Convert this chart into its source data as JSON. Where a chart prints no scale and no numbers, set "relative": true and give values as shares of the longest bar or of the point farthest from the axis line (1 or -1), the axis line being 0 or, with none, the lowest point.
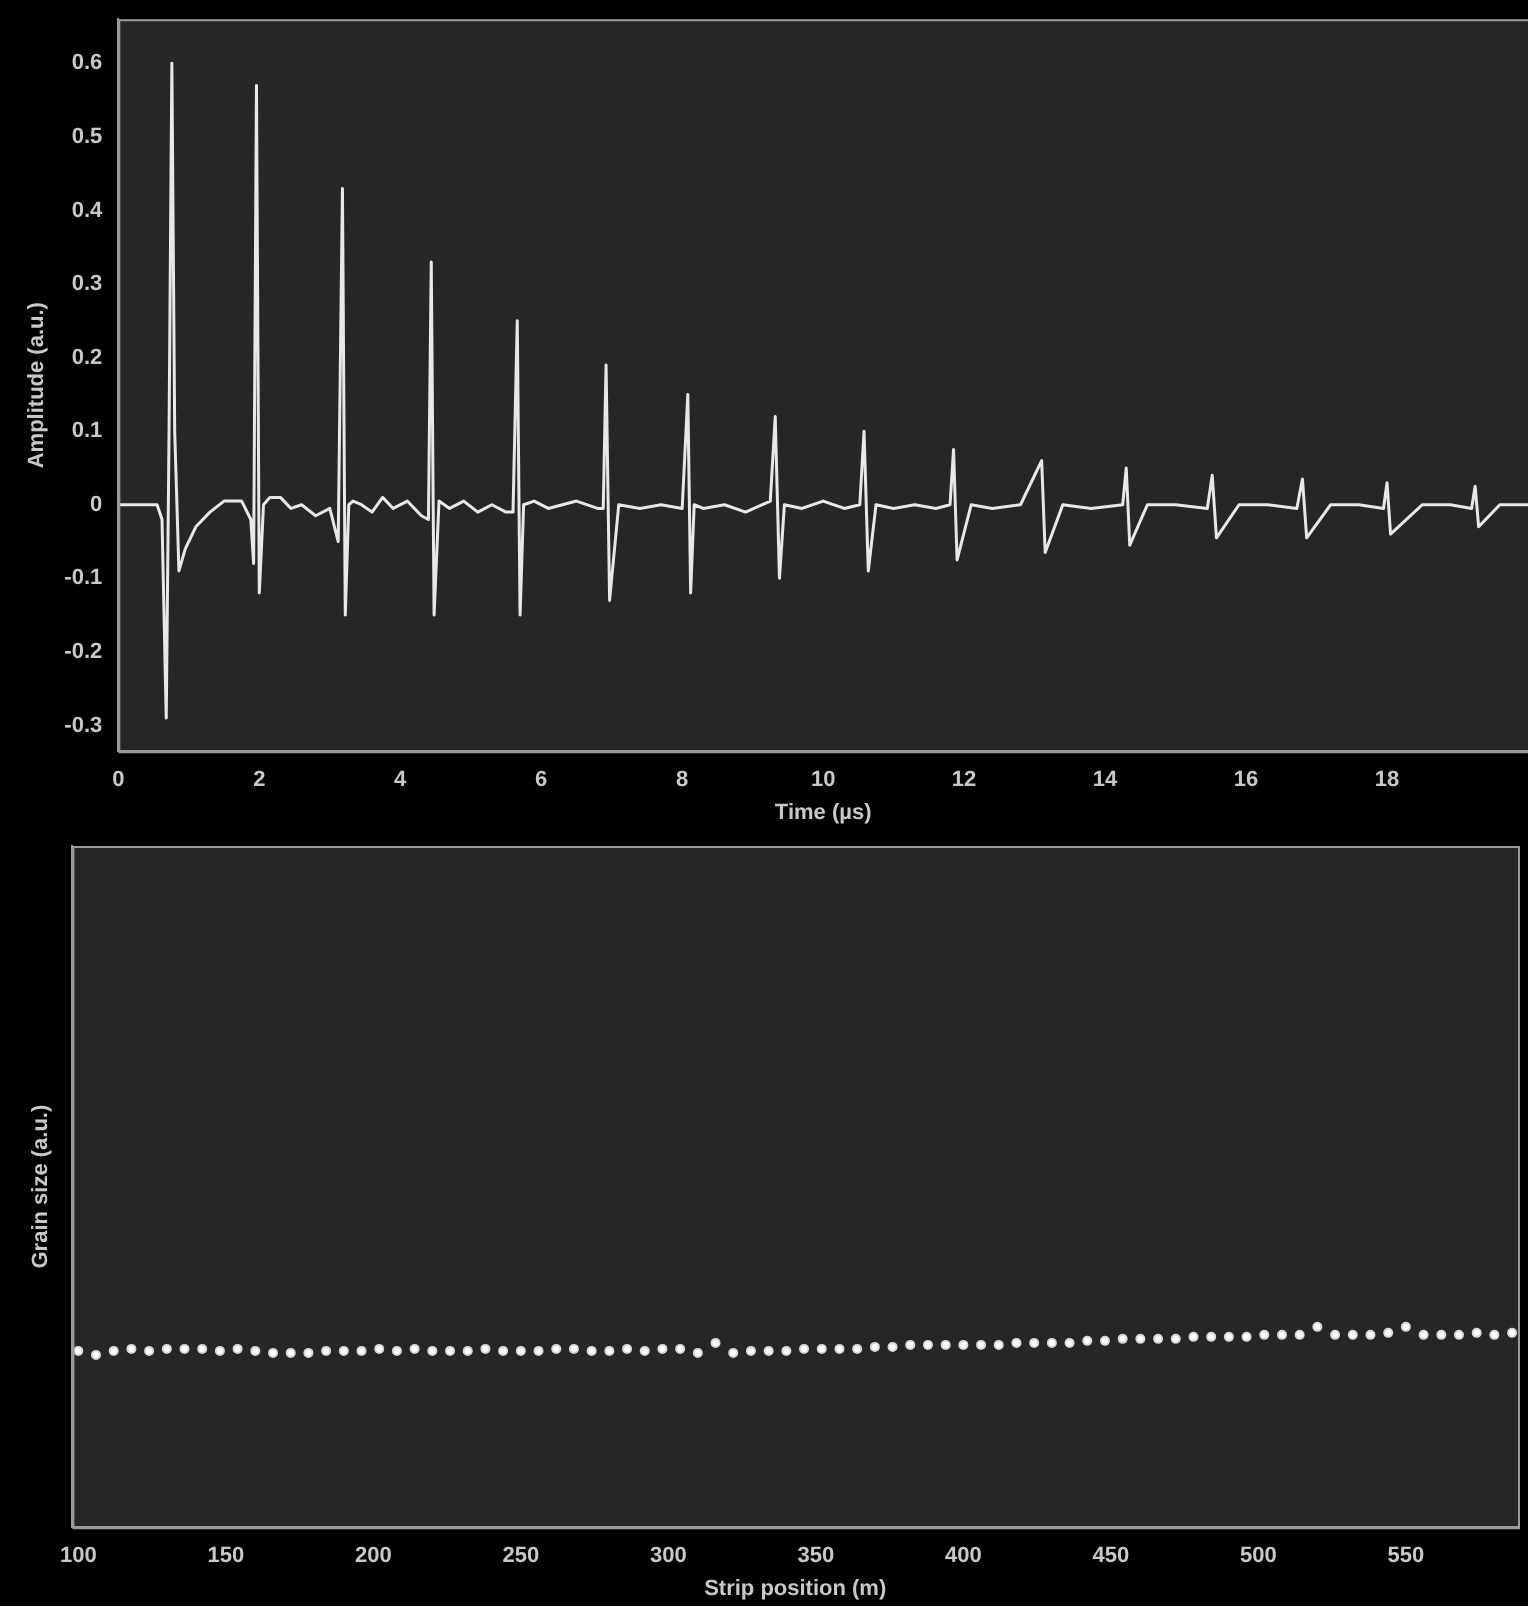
{
  "chart_data": [
    {
      "type": "line",
      "xlabel": "Time (µs)",
      "ylabel": "Amplitude (a.u.)",
      "xlim": [
        0,
        20
      ],
      "xticks": [
        0,
        2,
        4,
        6,
        8,
        10,
        12,
        14,
        16,
        18
      ],
      "ylim": [
        -0.335,
        0.66
      ],
      "yticks": [
        -0.3,
        -0.2,
        -0.1,
        0,
        0.1,
        0.2,
        0.3,
        0.4,
        0.5,
        0.6
      ],
      "marker": "none",
      "grid": false,
      "series": [
        {
          "color": "#e8e8e8",
          "x": [
            0,
            0.55,
            0.62,
            0.68,
            0.72,
            0.76,
            0.8,
            0.86,
            0.95,
            1.1,
            1.3,
            1.5,
            1.75,
            1.88,
            1.92,
            1.96,
            2.0,
            2.06,
            2.15,
            2.3,
            2.45,
            2.6,
            2.8,
            3.0,
            3.12,
            3.18,
            3.22,
            3.27,
            3.33,
            3.45,
            3.6,
            3.75,
            3.9,
            4.1,
            4.3,
            4.4,
            4.44,
            4.48,
            4.55,
            4.7,
            4.9,
            5.1,
            5.3,
            5.5,
            5.6,
            5.66,
            5.7,
            5.75,
            5.9,
            6.1,
            6.3,
            6.5,
            6.8,
            6.88,
            6.92,
            6.97,
            7.1,
            7.4,
            7.7,
            8.0,
            8.08,
            8.12,
            8.17,
            8.3,
            8.6,
            8.9,
            9.25,
            9.32,
            9.38,
            9.45,
            9.7,
            10.0,
            10.3,
            10.52,
            10.58,
            10.64,
            10.75,
            11.0,
            11.3,
            11.6,
            11.8,
            11.85,
            11.9,
            12.1,
            12.4,
            12.8,
            13.1,
            13.15,
            13.4,
            13.8,
            14.25,
            14.3,
            14.35,
            14.6,
            15.0,
            15.45,
            15.52,
            15.58,
            15.9,
            16.3,
            16.72,
            16.8,
            16.86,
            17.2,
            17.6,
            17.95,
            18.0,
            18.05,
            18.5,
            18.9,
            19.2,
            19.25,
            19.3,
            19.6,
            19.8,
            20
          ],
          "values": [
            0,
            0,
            -0.02,
            -0.29,
            0.1,
            0.6,
            0.1,
            -0.09,
            -0.06,
            -0.03,
            -0.01,
            0.005,
            0.005,
            -0.02,
            -0.08,
            0.57,
            -0.12,
            0.0,
            0.01,
            0.01,
            -0.005,
            0.0,
            -0.015,
            -0.005,
            -0.05,
            0.43,
            -0.15,
            0.0,
            0.005,
            0.0,
            -0.01,
            0.01,
            -0.005,
            0.005,
            -0.015,
            -0.02,
            0.33,
            -0.15,
            0.005,
            -0.005,
            0.005,
            -0.01,
            0.0,
            -0.01,
            -0.01,
            0.25,
            -0.15,
            0.0,
            0.005,
            -0.005,
            0.0,
            0.005,
            -0.005,
            -0.005,
            0.19,
            -0.13,
            0.0,
            -0.005,
            0.0,
            -0.005,
            0.15,
            -0.12,
            0.0,
            -0.005,
            0.0,
            -0.01,
            0.005,
            0.12,
            -0.1,
            0.0,
            -0.005,
            0.005,
            -0.005,
            0.0,
            0.1,
            -0.09,
            0.0,
            -0.005,
            0.0,
            -0.005,
            0.0,
            0.075,
            -0.075,
            0.0,
            -0.005,
            0.0,
            0.06,
            -0.065,
            0.0,
            -0.005,
            0.0,
            0.05,
            -0.055,
            0.0,
            0.0,
            -0.005,
            0.04,
            -0.045,
            0.0,
            0.0,
            -0.005,
            0.035,
            -0.045,
            0.0,
            0.0,
            -0.005,
            0.03,
            -0.04,
            0.0,
            0.0,
            -0.005,
            0.025,
            -0.03,
            0.0,
            0.0,
            0.0
          ]
        }
      ]
    },
    {
      "type": "scatter",
      "xlabel": "Strip position (m)",
      "ylabel": "Grain size (a.u.)",
      "relative": true,
      "tick_labels": "x",
      "xlim": [
        98,
        588
      ],
      "xticks": [
        100,
        150,
        200,
        250,
        300,
        350,
        400,
        450,
        500,
        550
      ],
      "marker": "circle",
      "grid": false,
      "series": [
        {
          "color": "#d9d9d9",
          "x": [
            100,
            106,
            112,
            118,
            124,
            130,
            136,
            142,
            148,
            154,
            160,
            166,
            172,
            178,
            184,
            190,
            196,
            202,
            208,
            214,
            220,
            226,
            232,
            238,
            244,
            250,
            256,
            262,
            268,
            274,
            280,
            286,
            292,
            298,
            304,
            310,
            316,
            322,
            328,
            334,
            340,
            346,
            352,
            358,
            364,
            370,
            376,
            382,
            388,
            394,
            400,
            406,
            412,
            418,
            424,
            430,
            436,
            442,
            448,
            454,
            460,
            466,
            472,
            478,
            484,
            490,
            496,
            502,
            508,
            514,
            520,
            526,
            532,
            538,
            544,
            550,
            556,
            562,
            568,
            574,
            580,
            586
          ],
          "values": [
            0.88,
            0.86,
            0.88,
            0.89,
            0.88,
            0.89,
            0.89,
            0.89,
            0.88,
            0.89,
            0.88,
            0.87,
            0.87,
            0.87,
            0.88,
            0.88,
            0.88,
            0.89,
            0.88,
            0.89,
            0.88,
            0.88,
            0.88,
            0.89,
            0.88,
            0.88,
            0.88,
            0.89,
            0.89,
            0.88,
            0.88,
            0.89,
            0.88,
            0.89,
            0.89,
            0.87,
            0.92,
            0.87,
            0.88,
            0.88,
            0.88,
            0.89,
            0.89,
            0.89,
            0.89,
            0.9,
            0.9,
            0.91,
            0.91,
            0.91,
            0.91,
            0.91,
            0.91,
            0.92,
            0.92,
            0.92,
            0.92,
            0.93,
            0.93,
            0.94,
            0.94,
            0.94,
            0.94,
            0.95,
            0.95,
            0.95,
            0.95,
            0.96,
            0.96,
            0.96,
            1.0,
            0.96,
            0.96,
            0.96,
            0.97,
            1.0,
            0.96,
            0.96,
            0.96,
            0.97,
            0.96,
            0.97
          ]
        }
      ]
    }
  ]
}
